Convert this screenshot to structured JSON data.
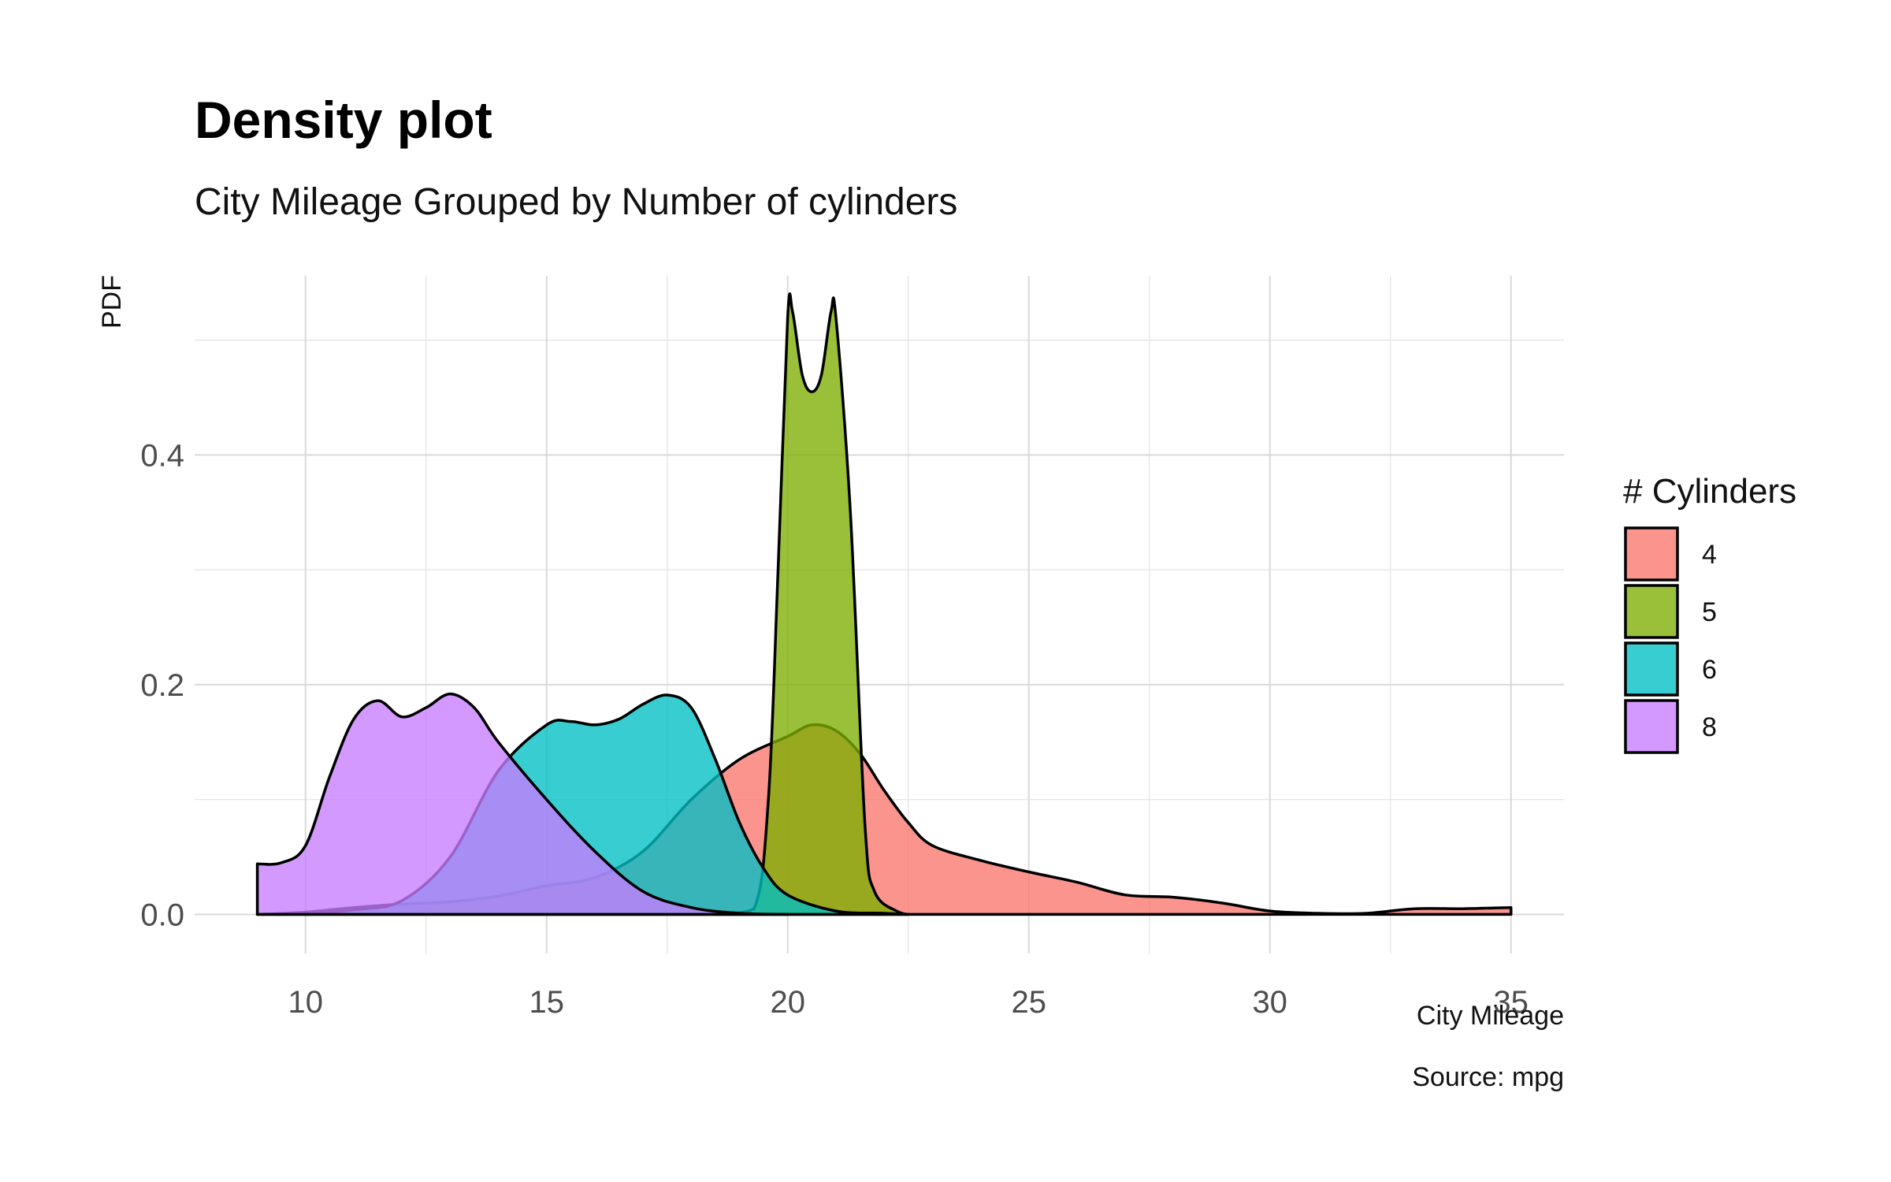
{
  "chart_data": {
    "type": "area",
    "title": "Density plot",
    "subtitle": "City Mileage Grouped by Number of cylinders",
    "xlabel": "City Mileage",
    "ylabel": "PDF",
    "caption": "Source: mpg",
    "xlim": [
      7.7,
      36.1
    ],
    "ylim": [
      -0.034,
      0.556
    ],
    "x_ticks": [
      10,
      15,
      20,
      25,
      30,
      35
    ],
    "x_tick_labels": [
      "10",
      "15",
      "20",
      "25",
      "30",
      "35"
    ],
    "y_ticks": [
      0.0,
      0.2,
      0.4
    ],
    "y_tick_labels": [
      "0.0",
      "0.2",
      "0.4"
    ],
    "grid": true,
    "legend": {
      "title": "# Cylinders",
      "position": "right"
    },
    "series": [
      {
        "name": "4",
        "color": "#F8766D",
        "points": [
          [
            9,
            0.0
          ],
          [
            10,
            0.002
          ],
          [
            11,
            0.006
          ],
          [
            12,
            0.009
          ],
          [
            13,
            0.011
          ],
          [
            14,
            0.016
          ],
          [
            15,
            0.025
          ],
          [
            16,
            0.032
          ],
          [
            17,
            0.055
          ],
          [
            18,
            0.1
          ],
          [
            19,
            0.135
          ],
          [
            20,
            0.155
          ],
          [
            20.5,
            0.165
          ],
          [
            21,
            0.16
          ],
          [
            21.5,
            0.14
          ],
          [
            22,
            0.108
          ],
          [
            22.5,
            0.08
          ],
          [
            23,
            0.06
          ],
          [
            24,
            0.047
          ],
          [
            25,
            0.037
          ],
          [
            26,
            0.028
          ],
          [
            27,
            0.017
          ],
          [
            28,
            0.015
          ],
          [
            29,
            0.01
          ],
          [
            30,
            0.003
          ],
          [
            31,
            0.001
          ],
          [
            32,
            0.001
          ],
          [
            33,
            0.005
          ],
          [
            34,
            0.005
          ],
          [
            35,
            0.006
          ]
        ]
      },
      {
        "name": "5",
        "color": "#7CAE00",
        "points": [
          [
            18.5,
            0.0
          ],
          [
            19.3,
            0.005
          ],
          [
            19.6,
            0.1
          ],
          [
            19.8,
            0.3
          ],
          [
            20.0,
            0.52
          ],
          [
            20.1,
            0.525
          ],
          [
            20.3,
            0.47
          ],
          [
            20.5,
            0.455
          ],
          [
            20.7,
            0.47
          ],
          [
            20.9,
            0.525
          ],
          [
            21.0,
            0.52
          ],
          [
            21.3,
            0.35
          ],
          [
            21.6,
            0.08
          ],
          [
            21.8,
            0.02
          ],
          [
            22.3,
            0.002
          ],
          [
            22.5,
            0.0
          ]
        ]
      },
      {
        "name": "6",
        "color": "#00BFC4",
        "points": [
          [
            9,
            0.0
          ],
          [
            10,
            0.001
          ],
          [
            11,
            0.004
          ],
          [
            12,
            0.012
          ],
          [
            13,
            0.05
          ],
          [
            14,
            0.125
          ],
          [
            15,
            0.165
          ],
          [
            15.5,
            0.168
          ],
          [
            16,
            0.165
          ],
          [
            16.5,
            0.17
          ],
          [
            17,
            0.183
          ],
          [
            17.5,
            0.191
          ],
          [
            18,
            0.18
          ],
          [
            18.5,
            0.135
          ],
          [
            19,
            0.08
          ],
          [
            19.5,
            0.04
          ],
          [
            20,
            0.017
          ],
          [
            21,
            0.003
          ],
          [
            22,
            0.001
          ],
          [
            22.5,
            0.0
          ]
        ]
      },
      {
        "name": "8",
        "color": "#C77CFF",
        "points": [
          [
            9,
            0.044
          ],
          [
            9.5,
            0.045
          ],
          [
            10,
            0.06
          ],
          [
            10.5,
            0.12
          ],
          [
            11,
            0.17
          ],
          [
            11.5,
            0.186
          ],
          [
            12,
            0.172
          ],
          [
            12.5,
            0.18
          ],
          [
            13,
            0.192
          ],
          [
            13.5,
            0.18
          ],
          [
            14,
            0.15
          ],
          [
            15,
            0.1
          ],
          [
            16,
            0.055
          ],
          [
            17,
            0.02
          ],
          [
            18,
            0.006
          ],
          [
            19,
            0.001
          ],
          [
            20,
            0.0
          ]
        ]
      }
    ]
  }
}
